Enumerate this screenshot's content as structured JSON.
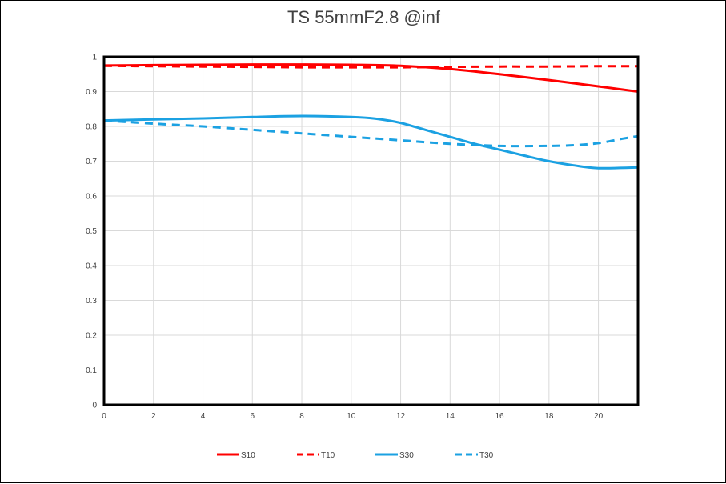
{
  "chart_data": {
    "type": "line",
    "title": "TS 55mmF2.8 @inf",
    "xlabel": "",
    "ylabel": "",
    "xlim": [
      0,
      21.6
    ],
    "ylim": [
      0,
      1
    ],
    "x_ticks": [
      "0",
      "2",
      "4",
      "6",
      "8",
      "10",
      "12",
      "14",
      "16",
      "18",
      "20"
    ],
    "y_ticks": [
      "0",
      "0.1",
      "0.2",
      "0.3",
      "0.4",
      "0.5",
      "0.6",
      "0.7",
      "0.8",
      "0.9",
      "1"
    ],
    "grid": true,
    "legend_position": "bottom",
    "series": [
      {
        "name": "S10",
        "color": "#ff0000",
        "dash": "solid",
        "x": [
          0,
          2,
          4,
          6,
          8,
          10,
          12,
          14,
          16,
          18,
          20,
          21.6
        ],
        "y": [
          0.975,
          0.976,
          0.977,
          0.978,
          0.978,
          0.977,
          0.974,
          0.965,
          0.95,
          0.933,
          0.915,
          0.9
        ]
      },
      {
        "name": "T10",
        "color": "#ff0000",
        "dash": "dashed",
        "x": [
          0,
          2,
          4,
          6,
          8,
          10,
          12,
          14,
          16,
          18,
          20,
          21.6
        ],
        "y": [
          0.974,
          0.973,
          0.972,
          0.971,
          0.97,
          0.97,
          0.97,
          0.971,
          0.972,
          0.972,
          0.973,
          0.973
        ]
      },
      {
        "name": "S30",
        "color": "#1ba1e2",
        "dash": "solid",
        "x": [
          0,
          2,
          4,
          6,
          8,
          10,
          11,
          12,
          13,
          14,
          15,
          16,
          17,
          18,
          19,
          20,
          21.6
        ],
        "y": [
          0.817,
          0.82,
          0.823,
          0.827,
          0.83,
          0.827,
          0.822,
          0.81,
          0.79,
          0.77,
          0.75,
          0.733,
          0.716,
          0.7,
          0.688,
          0.68,
          0.682
        ]
      },
      {
        "name": "T30",
        "color": "#1ba1e2",
        "dash": "dashed",
        "x": [
          0,
          2,
          4,
          6,
          8,
          10,
          12,
          14,
          16,
          18,
          19,
          20,
          21,
          21.6
        ],
        "y": [
          0.817,
          0.808,
          0.8,
          0.79,
          0.78,
          0.77,
          0.76,
          0.75,
          0.744,
          0.744,
          0.746,
          0.752,
          0.765,
          0.772
        ]
      }
    ]
  }
}
